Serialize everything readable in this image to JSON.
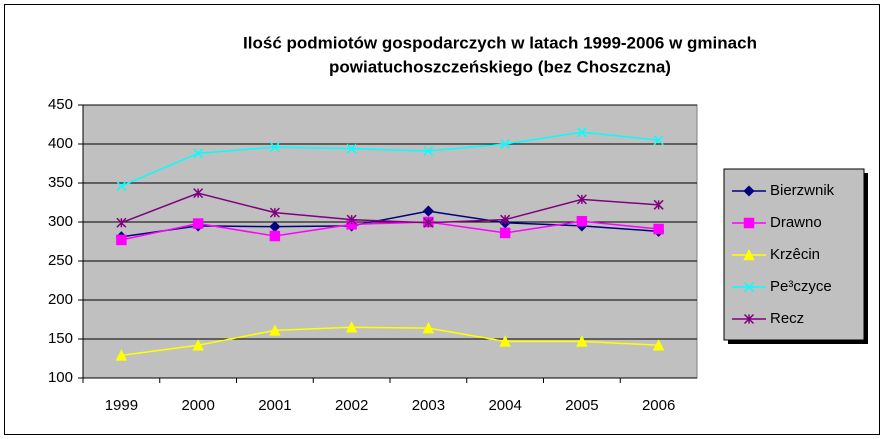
{
  "chart_data": {
    "type": "line",
    "title": [
      "Ilość podmiotów gospodarczych w latach 1999-2006 w gminach",
      "powiatuchoszczeńskiego (bez Choszczna)"
    ],
    "categories": [
      "1999",
      "2000",
      "2001",
      "2002",
      "2003",
      "2004",
      "2005",
      "2006"
    ],
    "series": [
      {
        "name": "Bierzwnik",
        "color": "#000080",
        "marker": "diamond",
        "values": [
          281,
          295,
          294,
          295,
          314,
          299,
          295,
          288
        ]
      },
      {
        "name": "Drawno",
        "color": "#ff00ff",
        "marker": "square",
        "values": [
          277,
          298,
          282,
          297,
          300,
          286,
          301,
          291
        ]
      },
      {
        "name": "Krzêcin",
        "color": "#ffff00",
        "marker": "triangle",
        "values": [
          129,
          142,
          161,
          165,
          164,
          147,
          147,
          142
        ]
      },
      {
        "name": "Pe³czyce",
        "color": "#00ffff",
        "marker": "x",
        "values": [
          346,
          388,
          396,
          394,
          391,
          400,
          415,
          405
        ]
      },
      {
        "name": "Recz",
        "color": "#800080",
        "marker": "star",
        "values": [
          299,
          337,
          312,
          303,
          299,
          303,
          329,
          322
        ]
      }
    ],
    "ylim": [
      100,
      450
    ],
    "yticks": [
      100,
      150,
      200,
      250,
      300,
      350,
      400,
      450
    ],
    "grid": true,
    "legend": "right",
    "plot_background": "#c0c0c0"
  }
}
